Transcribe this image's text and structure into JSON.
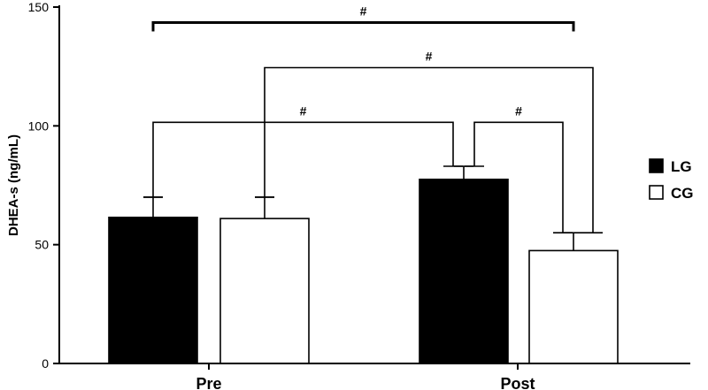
{
  "chart_data": {
    "type": "bar",
    "title": "",
    "xlabel": "",
    "ylabel": "DHEA-s (ng/mL)",
    "ylim": [
      0,
      150
    ],
    "yticks": [
      0,
      50,
      100,
      150
    ],
    "categories": [
      "Pre",
      "Post"
    ],
    "series": [
      {
        "name": "LG",
        "values": [
          61.5,
          77.5
        ],
        "sd": [
          8.5,
          5.5
        ],
        "color": "#000000",
        "fill": "#000000"
      },
      {
        "name": "CG",
        "values": [
          61,
          47.5
        ],
        "sd": [
          9,
          7.5
        ],
        "color": "#000000",
        "fill": "#ffffff"
      }
    ],
    "legend_position": "right",
    "grid": false,
    "annotations": [
      {
        "text": "#",
        "from": "Pre-LG",
        "to": "Post-CG",
        "level": 143.5
      },
      {
        "text": "#",
        "from": "Pre-CG",
        "to": "Post-CG",
        "level": 124.5
      },
      {
        "text": "#",
        "from": "Pre-LG",
        "to": "Post-LG",
        "level": 101.5
      },
      {
        "text": "#",
        "from": "Post-LG",
        "to": "Post-CG",
        "level": 101.5
      }
    ]
  }
}
